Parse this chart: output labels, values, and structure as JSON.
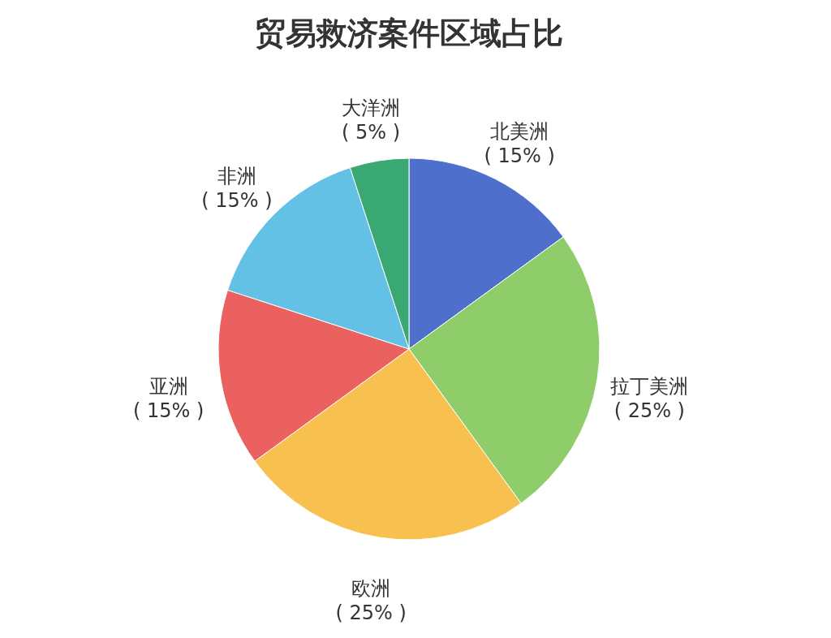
{
  "chart_data": {
    "type": "pie",
    "title": "贸易救济案件区域占比",
    "categories": [
      "北美洲",
      "拉丁美洲",
      "欧洲",
      "亚洲",
      "非洲",
      "大洋洲"
    ],
    "values": [
      15,
      25,
      25,
      15,
      15,
      5
    ],
    "value_labels": [
      "( 15% )",
      "( 25% )",
      "( 25% )",
      "( 15% )",
      "( 15% )",
      "( 5% )"
    ],
    "colors": [
      "#4e6fcb",
      "#8fcc6a",
      "#f7c04f",
      "#ea6160",
      "#62c1e5",
      "#3aa873"
    ]
  }
}
